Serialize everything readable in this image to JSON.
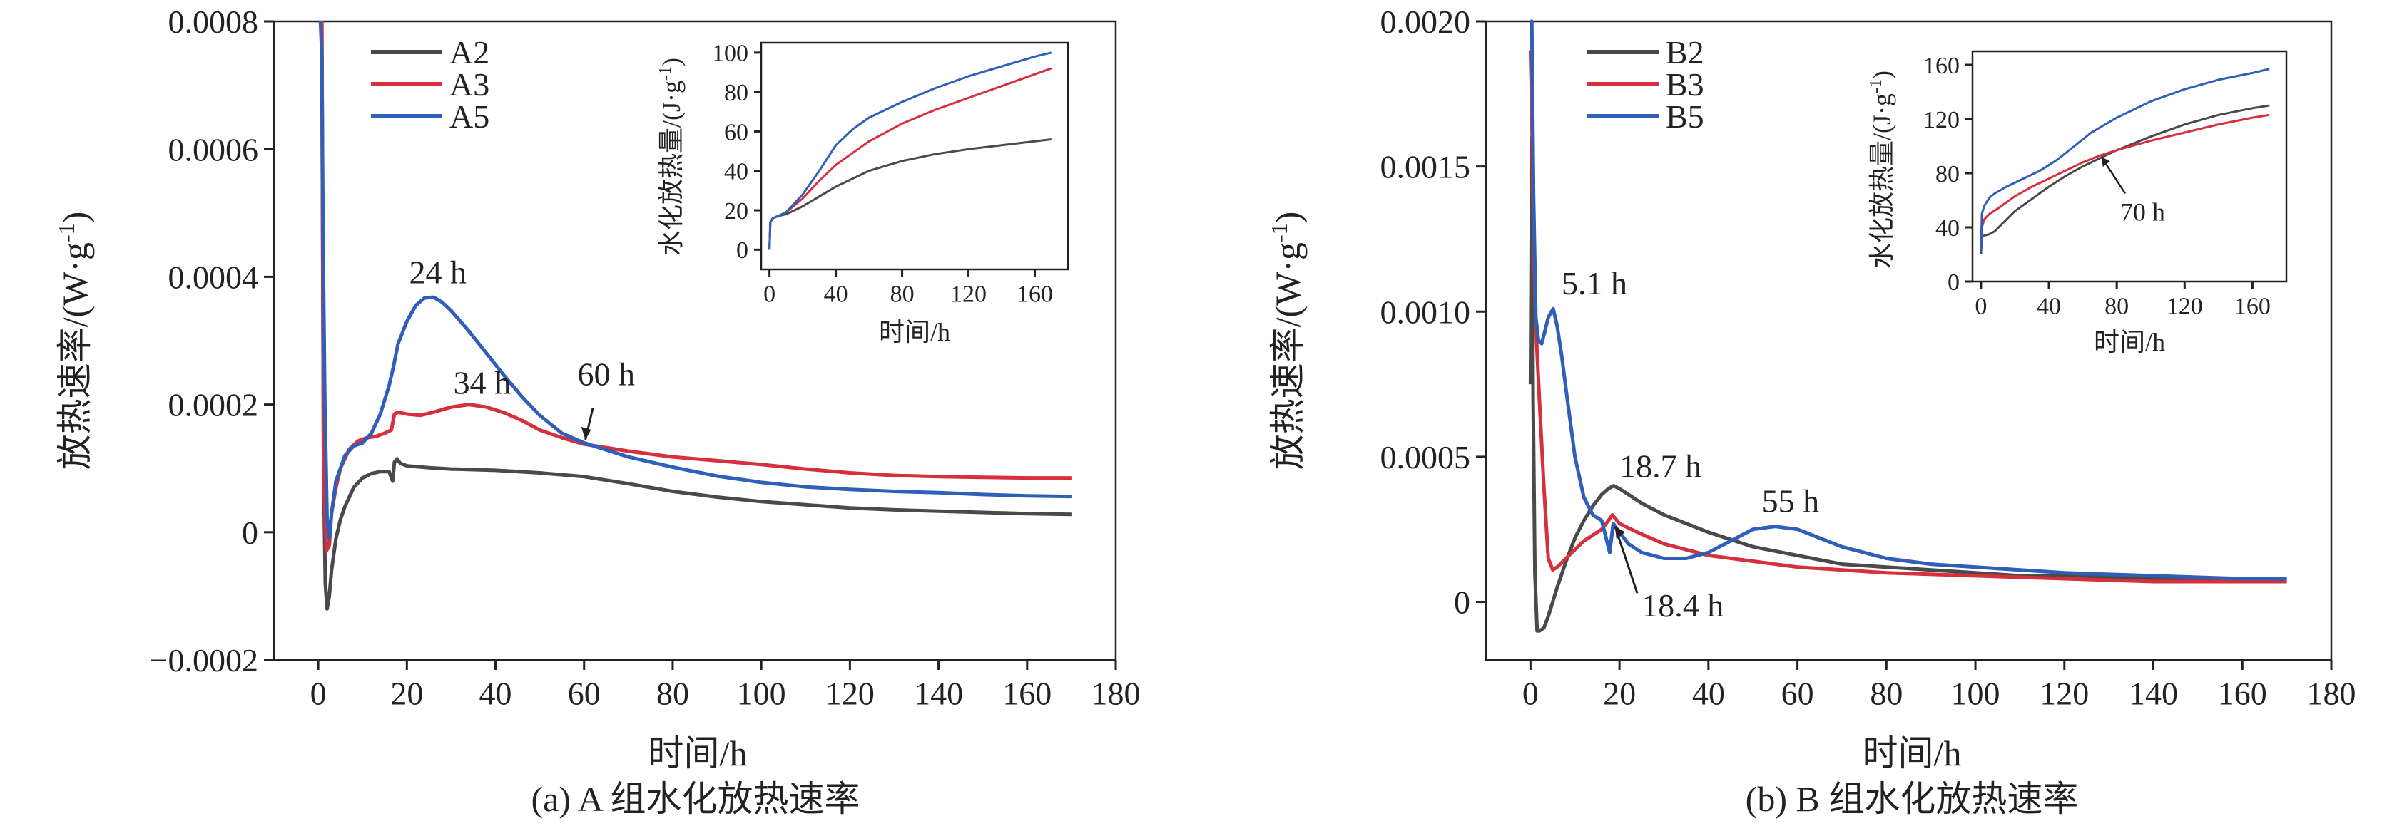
{
  "chart_data": [
    {
      "type": "line",
      "caption": "(a) A 组水化放热速率",
      "xlabel": "时间/h",
      "ylabel": "放热速率/(W·g",
      "ylabel_sup": "-1",
      "ylabel_end": ")",
      "xlim": [
        -10,
        180
      ],
      "ylim": [
        -0.0002,
        0.0008
      ],
      "xticks": [
        0,
        20,
        40,
        60,
        80,
        100,
        120,
        140,
        160,
        180
      ],
      "yticks": [
        -0.0002,
        0,
        0.0002,
        0.0004,
        0.0006,
        0.0008
      ],
      "ytick_labels": [
        "−0.0002",
        "0",
        "0.0002",
        "0.0004",
        "0.0006",
        "0.0008"
      ],
      "series": [
        {
          "name": "A2",
          "color": "#4a4a4a",
          "x": [
            0.8,
            1.2,
            1.6,
            2.0,
            2.5,
            3,
            4,
            5,
            6,
            8,
            10,
            12,
            14,
            16,
            16.8,
            17.2,
            17.8,
            18.5,
            20,
            25,
            30,
            40,
            50,
            60,
            70,
            80,
            90,
            100,
            110,
            120,
            130,
            140,
            150,
            160,
            170
          ],
          "y": [
            0.0008,
            0.0001,
            -8e-05,
            -0.00012,
            -0.0001,
            -6e-05,
            -1e-05,
            2e-05,
            4e-05,
            7e-05,
            8.5e-05,
            9.2e-05,
            9.5e-05,
            9.5e-05,
            8e-05,
            0.00011,
            0.000115,
            0.000108,
            0.000104,
            0.000101,
            9.9e-05,
            9.7e-05,
            9.3e-05,
            8.7e-05,
            7.6e-05,
            6.4e-05,
            5.5e-05,
            4.8e-05,
            4.3e-05,
            3.8e-05,
            3.5e-05,
            3.3e-05,
            3.1e-05,
            2.9e-05,
            2.8e-05
          ]
        },
        {
          "name": "A3",
          "color": "#d6303c",
          "x": [
            0.8,
            1.2,
            1.8,
            2.5,
            3,
            4,
            5,
            7,
            9,
            11,
            13,
            15,
            16.5,
            17.2,
            18,
            20,
            23,
            26,
            30,
            34,
            38,
            42,
            46,
            50,
            55,
            60,
            70,
            80,
            90,
            100,
            110,
            120,
            130,
            140,
            150,
            160,
            170
          ],
          "y": [
            0.0008,
            0.0001,
            -3e-05,
            -2e-05,
            3e-05,
            7e-05,
            0.0001,
            0.00013,
            0.000143,
            0.000148,
            0.00015,
            0.000155,
            0.00016,
            0.000185,
            0.000188,
            0.000185,
            0.000183,
            0.000188,
            0.000196,
            0.0002,
            0.000196,
            0.000187,
            0.000175,
            0.00016,
            0.000148,
            0.000138,
            0.000127,
            0.000118,
            0.000112,
            0.000106,
            9.9e-05,
            9.3e-05,
            8.9e-05,
            8.7e-05,
            8.6e-05,
            8.5e-05,
            8.5e-05
          ]
        },
        {
          "name": "A5",
          "color": "#2f5fb8",
          "x": [
            0.5,
            0.8,
            1.1,
            1.5,
            2,
            2.5,
            3,
            4,
            5,
            6,
            8,
            10,
            12,
            14,
            16,
            17,
            18,
            20,
            22,
            24,
            26,
            28,
            30,
            34,
            38,
            42,
            46,
            50,
            55,
            60,
            70,
            80,
            90,
            100,
            110,
            120,
            130,
            140,
            150,
            160,
            170
          ],
          "y": [
            0.0008,
            0.00075,
            0.00045,
            0.0002,
            2e-05,
            -1e-05,
            3e-05,
            8e-05,
            0.0001,
            0.00012,
            0.000135,
            0.00014,
            0.000155,
            0.000185,
            0.00023,
            0.00026,
            0.000295,
            0.00033,
            0.000355,
            0.000367,
            0.000368,
            0.00036,
            0.000347,
            0.000315,
            0.00028,
            0.000245,
            0.000212,
            0.000183,
            0.000155,
            0.00014,
            0.000118,
            0.000102,
            8.8e-05,
            7.8e-05,
            7.1e-05,
            6.7e-05,
            6.4e-05,
            6.2e-05,
            5.9e-05,
            5.7e-05,
            5.6e-05
          ]
        }
      ],
      "annotations": [
        {
          "text": "24 h",
          "x": 27,
          "y": 0.00039
        },
        {
          "text": "34 h",
          "x": 37,
          "y": 0.000217
        },
        {
          "text": "60 h",
          "x": 65,
          "y": 0.00023
        }
      ],
      "inset": {
        "xlabel": "时间/h",
        "ylabel": "水化放热量/(J·g",
        "ylabel_sup": "-1",
        "ylabel_end": ")",
        "xlim": [
          -5,
          180
        ],
        "ylim": [
          -10,
          105
        ],
        "xticks": [
          0,
          40,
          80,
          120,
          160
        ],
        "yticks": [
          0,
          20,
          40,
          60,
          80,
          100
        ],
        "series": [
          {
            "name": "A2",
            "color": "#4a4a4a",
            "x": [
              0,
              0.5,
              2,
              5,
              10,
              20,
              30,
              40,
              60,
              80,
              100,
              120,
              140,
              160,
              170
            ],
            "y": [
              0,
              14,
              16,
              17,
              18,
              22,
              27,
              32,
              40,
              45,
              48.5,
              51,
              53,
              55,
              56
            ]
          },
          {
            "name": "A3",
            "color": "#d6303c",
            "x": [
              0,
              0.5,
              2,
              5,
              10,
              20,
              30,
              40,
              60,
              80,
              100,
              120,
              140,
              160,
              170
            ],
            "y": [
              0,
              14,
              16,
              17,
              19,
              26,
              35,
              43,
              55,
              64,
              71,
              77,
              83,
              89,
              92
            ]
          },
          {
            "name": "A5",
            "color": "#2f5fb8",
            "x": [
              0,
              0.5,
              2,
              5,
              10,
              20,
              30,
              40,
              50,
              60,
              80,
              100,
              120,
              140,
              160,
              170
            ],
            "y": [
              0,
              14,
              16,
              17,
              19,
              28,
              40,
              53,
              61,
              67,
              75,
              82,
              88,
              93,
              98,
              100
            ]
          }
        ]
      }
    },
    {
      "type": "line",
      "caption": "(b) B 组水化放热速率",
      "xlabel": "时间/h",
      "ylabel": "放热速率/(W·g",
      "ylabel_sup": "-1",
      "ylabel_end": ")",
      "xlim": [
        -10,
        180
      ],
      "ylim": [
        -0.0002,
        0.002
      ],
      "xticks": [
        0,
        20,
        40,
        60,
        80,
        100,
        120,
        140,
        160,
        180
      ],
      "yticks": [
        0,
        0.0005,
        0.001,
        0.0015,
        0.002
      ],
      "ytick_labels": [
        "0",
        "0.0005",
        "0.0010",
        "0.0015",
        "0.0020"
      ],
      "series": [
        {
          "name": "B2",
          "color": "#4a4a4a",
          "x": [
            0,
            0.3,
            0.6,
            1,
            1.5,
            2,
            3,
            4,
            6,
            8,
            10,
            12,
            14,
            16,
            17.5,
            18.7,
            20,
            22,
            25,
            30,
            35,
            40,
            50,
            60,
            70,
            80,
            90,
            100,
            110,
            120,
            140,
            160,
            170
          ],
          "y": [
            0.00075,
            0.0016,
            0.0007,
            0.0001,
            -0.0001,
            -0.0001,
            -9e-05,
            -5e-05,
            5e-05,
            0.00014,
            0.00022,
            0.00028,
            0.00033,
            0.00037,
            0.00039,
            0.0004,
            0.00039,
            0.00037,
            0.00034,
            0.0003,
            0.00027,
            0.00024,
            0.00019,
            0.00016,
            0.00013,
            0.00012,
            0.00011,
            0.0001,
            9e-05,
            9e-05,
            8e-05,
            8e-05,
            8e-05
          ]
        },
        {
          "name": "B3",
          "color": "#d6303c",
          "x": [
            0,
            0.3,
            0.7,
            1.2,
            2,
            3,
            4,
            5,
            6,
            8,
            10,
            12,
            14,
            16,
            17.5,
            18.4,
            20,
            24,
            30,
            40,
            50,
            60,
            80,
            100,
            120,
            140,
            160,
            170
          ],
          "y": [
            0.0019,
            0.0017,
            0.00125,
            0.00095,
            0.0007,
            0.0004,
            0.00015,
            0.00011,
            0.00012,
            0.00015,
            0.00018,
            0.00021,
            0.00023,
            0.00025,
            0.00028,
            0.0003,
            0.00027,
            0.00024,
            0.0002,
            0.00016,
            0.00014,
            0.00012,
            0.0001,
            9e-05,
            8e-05,
            7e-05,
            7e-05,
            7e-05
          ]
        },
        {
          "name": "B5",
          "color": "#2f5fb8",
          "x": [
            0,
            0.3,
            0.7,
            1.2,
            1.8,
            2.5,
            3.2,
            4,
            5.1,
            6,
            7,
            8,
            10,
            12,
            14,
            16,
            17,
            17.8,
            18.6,
            20,
            22,
            25,
            30,
            35,
            40,
            45,
            50,
            55,
            60,
            65,
            70,
            80,
            90,
            100,
            120,
            140,
            160,
            170
          ],
          "y": [
            0.002,
            0.002,
            0.0014,
            0.00098,
            0.0009,
            0.00089,
            0.00093,
            0.00098,
            0.00101,
            0.00095,
            0.00085,
            0.00073,
            0.0005,
            0.00036,
            0.0003,
            0.00028,
            0.00022,
            0.00017,
            0.00027,
            0.00024,
            0.0002,
            0.00017,
            0.00015,
            0.00015,
            0.00017,
            0.00021,
            0.00025,
            0.00026,
            0.00025,
            0.00022,
            0.00019,
            0.00015,
            0.00013,
            0.00012,
            0.0001,
            9e-05,
            8e-05,
            8e-05
          ]
        }
      ],
      "annotations": [
        {
          "text": "5.1 h",
          "x": 7,
          "y": 0.00106
        },
        {
          "text": "18.7 h",
          "x": 20,
          "y": 0.00043
        },
        {
          "text": "55 h",
          "x": 52,
          "y": 0.00031
        },
        {
          "text": "18.4 h",
          "x": 25,
          "y": -5e-05
        }
      ],
      "inset": {
        "xlabel": "时间/h",
        "ylabel": "水化放热量/(J·g",
        "ylabel_sup": "-1",
        "ylabel_end": ")",
        "xlim": [
          -5,
          180
        ],
        "ylim": [
          0,
          170
        ],
        "xticks": [
          0,
          40,
          80,
          120,
          160
        ],
        "yticks": [
          0,
          40,
          80,
          120,
          160
        ],
        "annotation": "70 h",
        "series": [
          {
            "name": "B2",
            "color": "#4a4a4a",
            "x": [
              0,
              0.5,
              2,
              5,
              8,
              12,
              20,
              30,
              40,
              50,
              60,
              70,
              80,
              100,
              120,
              140,
              160,
              170
            ],
            "y": [
              20,
              33,
              34,
              35,
              37,
              42,
              52,
              61,
              70,
              78,
              85,
              91,
              97,
              107,
              116,
              123,
              128,
              130
            ]
          },
          {
            "name": "B3",
            "color": "#d6303c",
            "x": [
              0,
              0.5,
              2,
              5,
              10,
              20,
              30,
              40,
              50,
              60,
              70,
              80,
              100,
              120,
              140,
              160,
              170
            ],
            "y": [
              22,
              40,
              46,
              50,
              54,
              63,
              70,
              76,
              82,
              88,
              93,
              97,
              104,
              110,
              116,
              121,
              123
            ]
          },
          {
            "name": "B5",
            "color": "#2f5fb8",
            "x": [
              0,
              0.5,
              2,
              5,
              8,
              15,
              25,
              35,
              45,
              55,
              65,
              80,
              100,
              120,
              140,
              160,
              170
            ],
            "y": [
              22,
              50,
              56,
              62,
              65,
              70,
              76,
              82,
              90,
              100,
              110,
              121,
              133,
              142,
              149,
              154,
              157
            ]
          }
        ]
      }
    }
  ]
}
